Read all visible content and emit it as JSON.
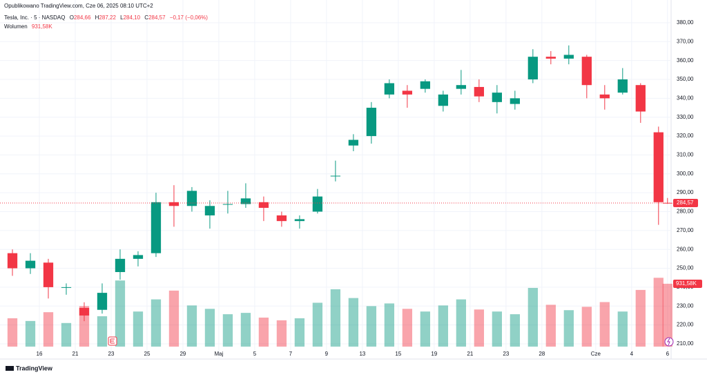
{
  "header": {
    "published": "Opublikowano TradingView.com, Cze 06, 2025 08:10 UTC+2",
    "symbol": "Tesla, Inc. · 5 · NASDAQ",
    "o_label": "O",
    "o_value": "284,66",
    "h_label": "H",
    "h_value": "287,22",
    "l_label": "L",
    "l_value": "284,10",
    "c_label": "C",
    "c_value": "284,57",
    "change": "−0,17 (−0,06%)",
    "volume_label": "Wolumen",
    "volume_value": "931,58K"
  },
  "chart_data": {
    "type": "candlestick",
    "x": [
      0.5,
      1.5,
      2.5,
      3.5,
      4.5,
      5.5,
      6.5,
      7.5,
      8.5,
      9.5,
      10.5,
      11.5,
      12.5,
      13.5,
      14.5,
      15.5,
      16.5,
      17.5,
      18.5,
      19.5,
      20.5,
      21.5,
      22.5,
      23.5,
      24.5,
      25.5,
      26.5,
      27.5,
      28.5,
      29.5,
      30.5,
      31.5,
      32.5,
      33.5,
      34.5,
      35.5,
      36.5,
      37.0
    ],
    "open": [
      258,
      250,
      253,
      240,
      229,
      228,
      248,
      255,
      258,
      285,
      283,
      278,
      284,
      284,
      285,
      278,
      275,
      280,
      299,
      315,
      320,
      342,
      344,
      345,
      336,
      345,
      346,
      338,
      337,
      350,
      362,
      361,
      362,
      342,
      343,
      347,
      322,
      284.66
    ],
    "high": [
      260,
      258,
      255,
      242,
      232,
      242,
      260,
      259,
      290,
      294,
      293,
      286,
      291,
      295,
      288,
      280,
      278,
      292,
      307,
      321,
      338,
      350,
      347,
      350,
      344,
      355,
      350,
      347,
      344,
      366,
      365,
      368,
      363,
      347,
      356,
      348,
      325,
      287.22
    ],
    "low": [
      246,
      247,
      234,
      236,
      222,
      226,
      244,
      251,
      256,
      272,
      280,
      271,
      279,
      282,
      275,
      272,
      271,
      279,
      296,
      312,
      316,
      340,
      335,
      343,
      333,
      342,
      338,
      332,
      334,
      348,
      358,
      358,
      340,
      334,
      342,
      327,
      273,
      284.1
    ],
    "close": [
      250,
      254,
      240,
      240,
      225,
      237,
      255,
      257,
      285,
      283,
      291,
      283,
      284,
      287,
      282,
      275,
      276,
      288,
      299,
      318,
      335,
      348,
      342,
      349,
      342,
      347,
      341,
      343,
      340,
      362,
      361,
      363,
      347,
      340,
      350,
      333,
      285,
      284.57
    ],
    "volume": [
      420,
      380,
      510,
      350,
      600,
      450,
      980,
      520,
      700,
      830,
      610,
      560,
      480,
      500,
      430,
      390,
      420,
      650,
      850,
      720,
      600,
      640,
      560,
      520,
      610,
      700,
      550,
      520,
      480,
      870,
      620,
      540,
      590,
      660,
      520,
      840,
      1020,
      931.58
    ],
    "up_color": "#089981",
    "down_color": "#f23645",
    "xlim": [
      0,
      37.2
    ],
    "ylim": [
      205.6,
      384
    ],
    "vlim": [
      0,
      1330
    ],
    "xticks": [
      {
        "value": 2,
        "label": "16"
      },
      {
        "value": 4,
        "label": "21"
      },
      {
        "value": 6,
        "label": "23"
      },
      {
        "value": 8,
        "label": "25"
      },
      {
        "value": 10,
        "label": "29"
      },
      {
        "value": 12,
        "label": "Maj"
      },
      {
        "value": 14,
        "label": "5"
      },
      {
        "value": 16,
        "label": "7"
      },
      {
        "value": 18,
        "label": "9"
      },
      {
        "value": 20,
        "label": "13"
      },
      {
        "value": 22,
        "label": "15"
      },
      {
        "value": 24,
        "label": "19"
      },
      {
        "value": 26,
        "label": "21"
      },
      {
        "value": 28,
        "label": "23"
      },
      {
        "value": 30,
        "label": "28"
      },
      {
        "value": 33,
        "label": "Cze"
      },
      {
        "value": 35,
        "label": "4"
      },
      {
        "value": 37,
        "label": "6"
      }
    ],
    "yticks": [
      {
        "value": 210,
        "label": "210,00"
      },
      {
        "value": 220,
        "label": "220,00"
      },
      {
        "value": 230,
        "label": "230,00"
      },
      {
        "value": 240,
        "label": "240,00"
      },
      {
        "value": 250,
        "label": "250,00"
      },
      {
        "value": 260,
        "label": "260,00"
      },
      {
        "value": 270,
        "label": "270,00"
      },
      {
        "value": 280,
        "label": "280,00"
      },
      {
        "value": 290,
        "label": "290,00"
      },
      {
        "value": 300,
        "label": "300,00"
      },
      {
        "value": 310,
        "label": "310,00"
      },
      {
        "value": 320,
        "label": "320,00"
      },
      {
        "value": 330,
        "label": "330,00"
      },
      {
        "value": 340,
        "label": "340,00"
      },
      {
        "value": 350,
        "label": "350,00"
      },
      {
        "value": 360,
        "label": "360,00"
      },
      {
        "value": 370,
        "label": "370,00"
      },
      {
        "value": 380,
        "label": "380,00"
      }
    ],
    "grid": true,
    "price_label": {
      "value": 284.57,
      "label": "284,57"
    },
    "volume_marker": {
      "value": 931.58,
      "label": "931,58K"
    }
  },
  "footer": {
    "brand": "TradingView"
  }
}
